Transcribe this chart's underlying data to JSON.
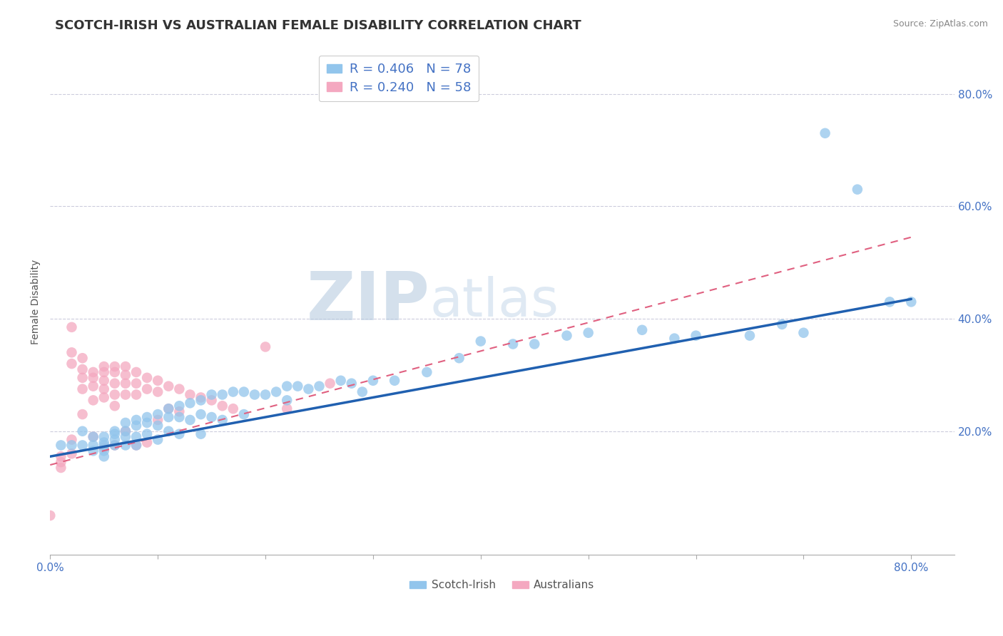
{
  "title": "SCOTCH-IRISH VS AUSTRALIAN FEMALE DISABILITY CORRELATION CHART",
  "source": "Source: ZipAtlas.com",
  "ylabel": "Female Disability",
  "xlim": [
    0.0,
    0.84
  ],
  "ylim": [
    -0.02,
    0.88
  ],
  "scotch_irish_R": 0.406,
  "scotch_irish_N": 78,
  "australians_R": 0.24,
  "australians_N": 58,
  "scotch_irish_color": "#92C5EC",
  "australians_color": "#F4A8C0",
  "scotch_irish_line_color": "#2060B0",
  "australians_line_color": "#E06080",
  "legend_label_1": "Scotch-Irish",
  "legend_label_2": "Australians",
  "watermark_zip": "ZIP",
  "watermark_atlas": "atlas",
  "scotch_irish_x": [
    0.01,
    0.02,
    0.03,
    0.03,
    0.04,
    0.04,
    0.04,
    0.05,
    0.05,
    0.05,
    0.05,
    0.05,
    0.06,
    0.06,
    0.06,
    0.06,
    0.07,
    0.07,
    0.07,
    0.07,
    0.08,
    0.08,
    0.08,
    0.08,
    0.09,
    0.09,
    0.09,
    0.1,
    0.1,
    0.1,
    0.11,
    0.11,
    0.11,
    0.12,
    0.12,
    0.12,
    0.13,
    0.13,
    0.14,
    0.14,
    0.14,
    0.15,
    0.15,
    0.16,
    0.16,
    0.17,
    0.18,
    0.18,
    0.19,
    0.2,
    0.21,
    0.22,
    0.22,
    0.23,
    0.24,
    0.25,
    0.27,
    0.28,
    0.29,
    0.3,
    0.32,
    0.35,
    0.38,
    0.4,
    0.43,
    0.45,
    0.48,
    0.5,
    0.55,
    0.58,
    0.6,
    0.65,
    0.68,
    0.7,
    0.72,
    0.75,
    0.78,
    0.8
  ],
  "scotch_irish_y": [
    0.175,
    0.175,
    0.2,
    0.175,
    0.19,
    0.175,
    0.165,
    0.19,
    0.18,
    0.175,
    0.165,
    0.155,
    0.2,
    0.195,
    0.185,
    0.175,
    0.215,
    0.2,
    0.19,
    0.175,
    0.22,
    0.21,
    0.19,
    0.175,
    0.225,
    0.215,
    0.195,
    0.23,
    0.21,
    0.185,
    0.24,
    0.225,
    0.2,
    0.245,
    0.225,
    0.195,
    0.25,
    0.22,
    0.255,
    0.23,
    0.195,
    0.265,
    0.225,
    0.265,
    0.22,
    0.27,
    0.27,
    0.23,
    0.265,
    0.265,
    0.27,
    0.28,
    0.255,
    0.28,
    0.275,
    0.28,
    0.29,
    0.285,
    0.27,
    0.29,
    0.29,
    0.305,
    0.33,
    0.36,
    0.355,
    0.355,
    0.37,
    0.375,
    0.38,
    0.365,
    0.37,
    0.37,
    0.39,
    0.375,
    0.73,
    0.63,
    0.43,
    0.43
  ],
  "australians_x": [
    0.0,
    0.01,
    0.01,
    0.01,
    0.02,
    0.02,
    0.02,
    0.02,
    0.02,
    0.03,
    0.03,
    0.03,
    0.03,
    0.03,
    0.04,
    0.04,
    0.04,
    0.04,
    0.04,
    0.05,
    0.05,
    0.05,
    0.05,
    0.05,
    0.05,
    0.06,
    0.06,
    0.06,
    0.06,
    0.06,
    0.06,
    0.07,
    0.07,
    0.07,
    0.07,
    0.07,
    0.08,
    0.08,
    0.08,
    0.08,
    0.09,
    0.09,
    0.09,
    0.1,
    0.1,
    0.1,
    0.11,
    0.11,
    0.12,
    0.12,
    0.13,
    0.14,
    0.15,
    0.16,
    0.17,
    0.2,
    0.22,
    0.26
  ],
  "australians_y": [
    0.05,
    0.155,
    0.145,
    0.135,
    0.385,
    0.34,
    0.32,
    0.185,
    0.16,
    0.33,
    0.31,
    0.295,
    0.275,
    0.23,
    0.305,
    0.295,
    0.28,
    0.255,
    0.19,
    0.315,
    0.305,
    0.29,
    0.275,
    0.26,
    0.17,
    0.315,
    0.305,
    0.285,
    0.265,
    0.245,
    0.175,
    0.315,
    0.3,
    0.285,
    0.265,
    0.2,
    0.305,
    0.285,
    0.265,
    0.175,
    0.295,
    0.275,
    0.18,
    0.29,
    0.27,
    0.22,
    0.28,
    0.24,
    0.275,
    0.235,
    0.265,
    0.26,
    0.255,
    0.245,
    0.24,
    0.35,
    0.24,
    0.285
  ],
  "si_line_x0": 0.0,
  "si_line_y0": 0.155,
  "si_line_x1": 0.8,
  "si_line_y1": 0.435,
  "au_line_x0": 0.0,
  "au_line_y0": 0.14,
  "au_line_x1": 0.8,
  "au_line_y1": 0.545
}
